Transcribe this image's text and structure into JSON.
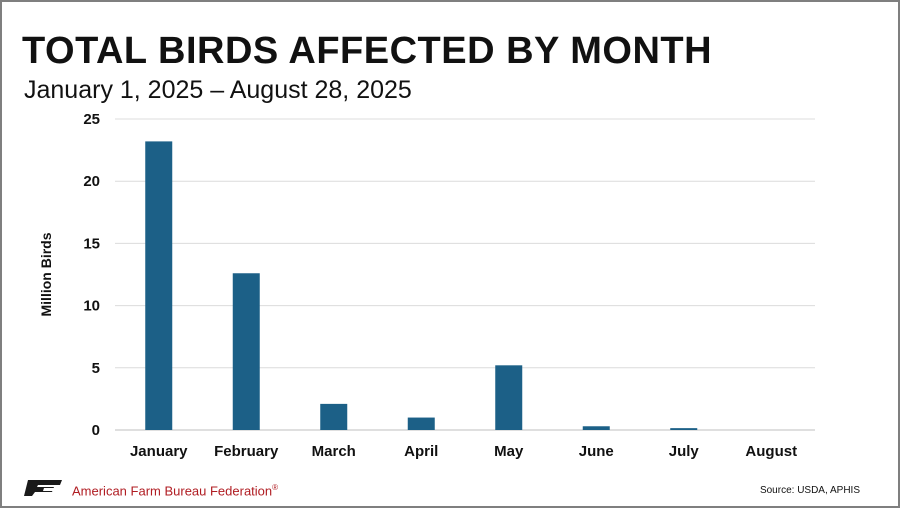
{
  "header": {
    "title": "TOTAL BIRDS AFFECTED BY MONTH",
    "subtitle": "January 1, 2025 – August 28, 2025"
  },
  "footer": {
    "organization": "American Farm Bureau Federation",
    "trademark": "®",
    "source": "Source: USDA, APHIS",
    "logo_icon": "afbf-logo-icon",
    "org_color": "#b01c22"
  },
  "chart_data": {
    "type": "bar",
    "categories": [
      "January",
      "February",
      "March",
      "April",
      "May",
      "June",
      "July",
      "August"
    ],
    "values": [
      23.2,
      12.6,
      2.1,
      1.0,
      5.2,
      0.3,
      0.15,
      0
    ],
    "title": "TOTAL BIRDS AFFECTED BY MONTH",
    "subtitle": "January 1, 2025 – August 28, 2025",
    "xlabel": "",
    "ylabel": "Million Birds",
    "ylim": [
      0,
      25
    ],
    "yticks": [
      0,
      5,
      10,
      15,
      20,
      25
    ],
    "grid": true,
    "legend": "none",
    "bar_color": "#1c6087"
  }
}
